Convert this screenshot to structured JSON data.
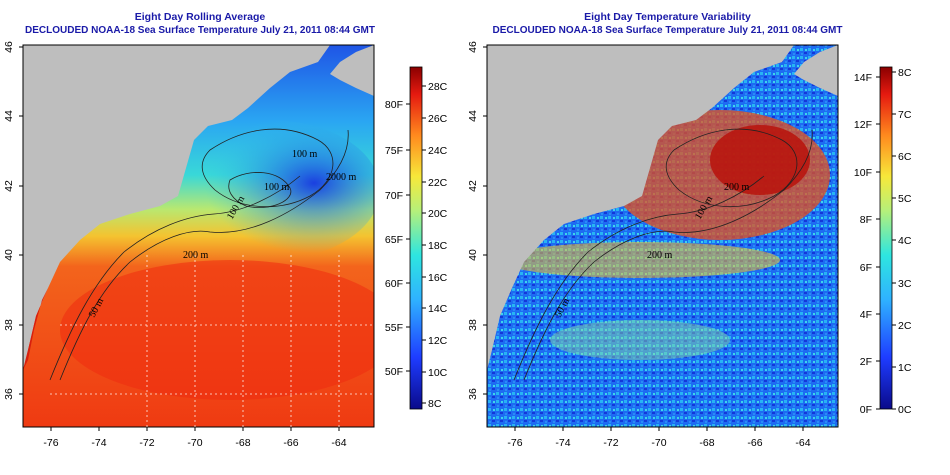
{
  "left_panel": {
    "title": "Eight Day Rolling Average",
    "subtitle": "DECLOUDED NOAA-18 Sea Surface Temperature July 21, 2011 08:44 GMT",
    "colorbar_c_labels": [
      "28C",
      "26C",
      "24C",
      "22C",
      "20C",
      "18C",
      "16C",
      "14C",
      "12C",
      "10C",
      "8C"
    ],
    "colorbar_f_labels": [
      "80F",
      "75F",
      "70F",
      "65F",
      "60F",
      "55F",
      "50F"
    ],
    "contour_labels": [
      "100 m",
      "2000 m",
      "100 m",
      "100 m",
      "200 m",
      "50 m"
    ]
  },
  "right_panel": {
    "title": "Eight Day Temperature Variability",
    "subtitle": "DECLOUDED NOAA-18 Sea Surface Temperature July 21, 2011 08:44 GMT",
    "colorbar_f_labels": [
      "14F",
      "12F",
      "10F",
      "8F",
      "6F",
      "4F",
      "2F",
      "0F"
    ],
    "colorbar_c_labels": [
      "8C",
      "7C",
      "6C",
      "5C",
      "4C",
      "3C",
      "2C",
      "1C",
      "0C"
    ],
    "contour_labels": [
      "200 m",
      "50 m",
      "100 m",
      "200 m"
    ]
  },
  "axes": {
    "x_ticks": [
      "-76",
      "-74",
      "-72",
      "-70",
      "-68",
      "-66",
      "-64"
    ],
    "y_ticks": [
      "46",
      "44",
      "42",
      "40",
      "38",
      "36"
    ]
  },
  "colors": {
    "title": "#1a1aa8",
    "land": "#bebebe"
  }
}
